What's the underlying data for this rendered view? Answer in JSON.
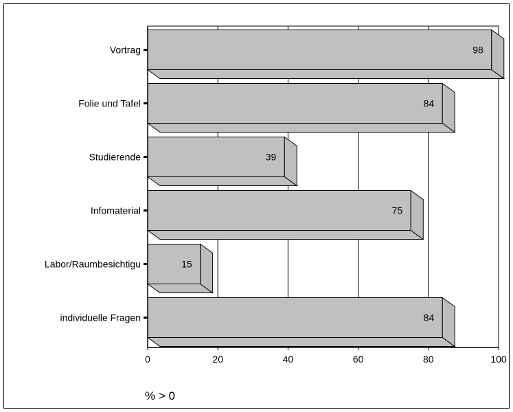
{
  "chart_data": {
    "type": "bar",
    "orientation": "horizontal",
    "three_d": true,
    "categories": [
      "Vortrag",
      "Folie und Tafel",
      "Studierende",
      "Infomaterial",
      "Labor/Raumbesichtigu",
      "individuelle Fragen"
    ],
    "values": [
      98,
      84,
      39,
      75,
      15,
      84
    ],
    "xlabel": "% > 0",
    "xticks": [
      0,
      20,
      40,
      60,
      80,
      100
    ],
    "xlim": [
      0,
      100
    ],
    "grid": true,
    "bar_color": "#c0c0c0"
  }
}
